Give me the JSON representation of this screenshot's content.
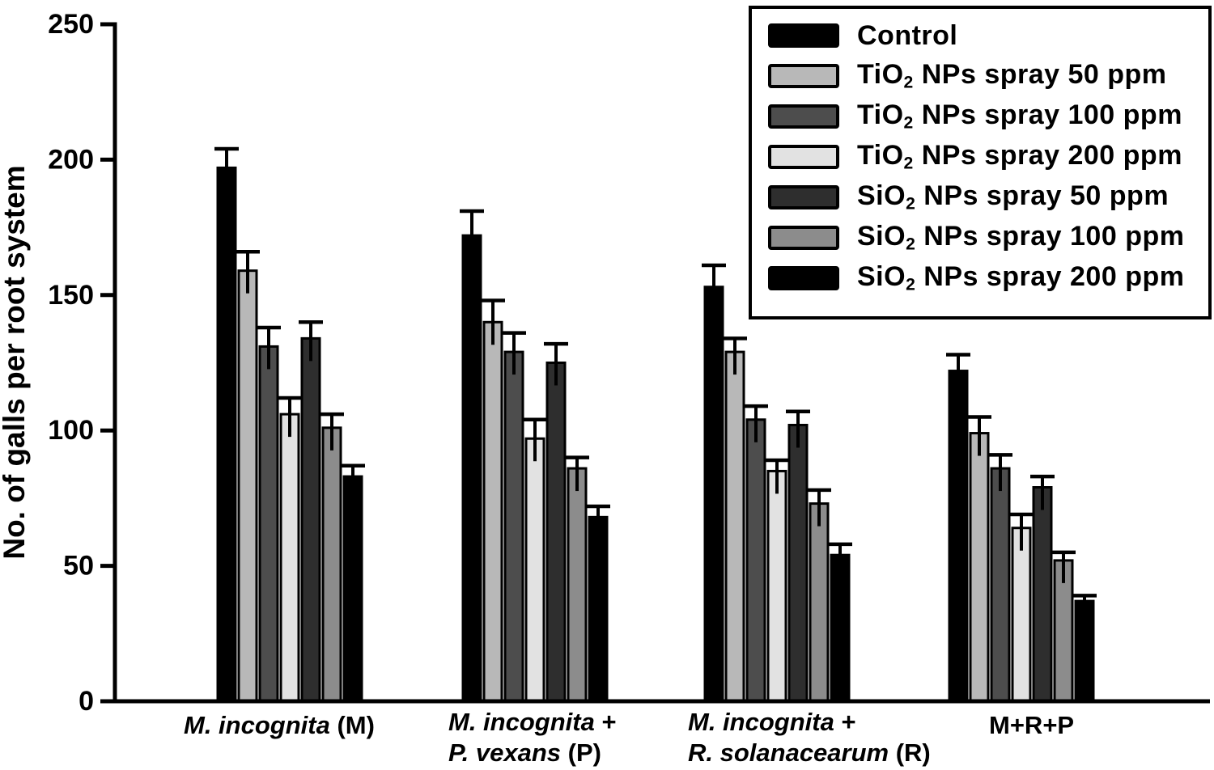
{
  "figure": {
    "background": "#ffffff",
    "axis_color": "#000000"
  },
  "chart_data": {
    "type": "bar",
    "title": "",
    "xlabel": "",
    "ylabel": "No. of galls per root system",
    "ylim": [
      0,
      250
    ],
    "yticks": [
      0,
      50,
      100,
      150,
      200,
      250
    ],
    "grid": false,
    "error_bars": true,
    "legend_position": "top-right",
    "categories": [
      {
        "label": "M. incognita (M)",
        "lines": [
          [
            {
              "text": "M. incognita",
              "italic": true
            },
            {
              "text": " (M)",
              "italic": false
            }
          ]
        ]
      },
      {
        "label": "M. incognita + P. vexans (P)",
        "lines": [
          [
            {
              "text": "M. incognita",
              "italic": true
            },
            {
              "text": " +",
              "italic": false
            }
          ],
          [
            {
              "text": "P. vexans",
              "italic": true
            },
            {
              "text": " (P)",
              "italic": false
            }
          ]
        ]
      },
      {
        "label": "M. incognita + R. solanacearum (R)",
        "lines": [
          [
            {
              "text": "M. incognita",
              "italic": true
            },
            {
              "text": " +",
              "italic": false
            }
          ],
          [
            {
              "text": "R. solanacearum",
              "italic": true
            },
            {
              "text": " (R)",
              "italic": false
            }
          ]
        ]
      },
      {
        "label": "M+R+P",
        "lines": [
          [
            {
              "text": "M+R+P",
              "italic": false
            }
          ]
        ]
      }
    ],
    "series": [
      {
        "name": "Control",
        "parts": [
          {
            "text": "Control"
          }
        ],
        "color": "#000000",
        "values": [
          197,
          172,
          153,
          122
        ],
        "errors": [
          7,
          9,
          8,
          6
        ]
      },
      {
        "name": "TiO2 NPs spray 50 ppm",
        "parts": [
          {
            "text": "TiO"
          },
          {
            "text": "2",
            "sub": true
          },
          {
            "text": " NPs spray 50 ppm"
          }
        ],
        "color": "#b8b8b8",
        "values": [
          159,
          140,
          129,
          99
        ],
        "errors": [
          7,
          8,
          5,
          6
        ]
      },
      {
        "name": "TiO2 NPs spray 100 ppm",
        "parts": [
          {
            "text": "TiO"
          },
          {
            "text": "2",
            "sub": true
          },
          {
            "text": " NPs spray 100 ppm"
          }
        ],
        "color": "#4d4d4d",
        "values": [
          131,
          129,
          104,
          86
        ],
        "errors": [
          7,
          7,
          5,
          5
        ]
      },
      {
        "name": "TiO2 NPs spray 200 ppm",
        "parts": [
          {
            "text": "TiO"
          },
          {
            "text": "2",
            "sub": true
          },
          {
            "text": " NPs spray 200 ppm"
          }
        ],
        "color": "#e2e2e2",
        "values": [
          106,
          97,
          85,
          64
        ],
        "errors": [
          6,
          7,
          4,
          5
        ]
      },
      {
        "name": "SiO2 NPs spray 50 ppm",
        "parts": [
          {
            "text": "SiO"
          },
          {
            "text": "2",
            "sub": true
          },
          {
            "text": " NPs spray 50 ppm"
          }
        ],
        "color": "#2e2e2e",
        "values": [
          134,
          125,
          102,
          79
        ],
        "errors": [
          6,
          7,
          5,
          4
        ]
      },
      {
        "name": "SiO2 NPs spray 100 ppm",
        "parts": [
          {
            "text": "SiO"
          },
          {
            "text": "2",
            "sub": true
          },
          {
            "text": " NPs spray 100 ppm"
          }
        ],
        "color": "#8c8c8c",
        "values": [
          101,
          86,
          73,
          52
        ],
        "errors": [
          5,
          4,
          5,
          3
        ]
      },
      {
        "name": "SiO2 NPs spray 200 ppm",
        "parts": [
          {
            "text": "SiO"
          },
          {
            "text": "2",
            "sub": true
          },
          {
            "text": " NPs spray 200 ppm"
          }
        ],
        "color": "#000000",
        "values": [
          83,
          68,
          54,
          37
        ],
        "errors": [
          4,
          4,
          4,
          2
        ]
      }
    ]
  }
}
